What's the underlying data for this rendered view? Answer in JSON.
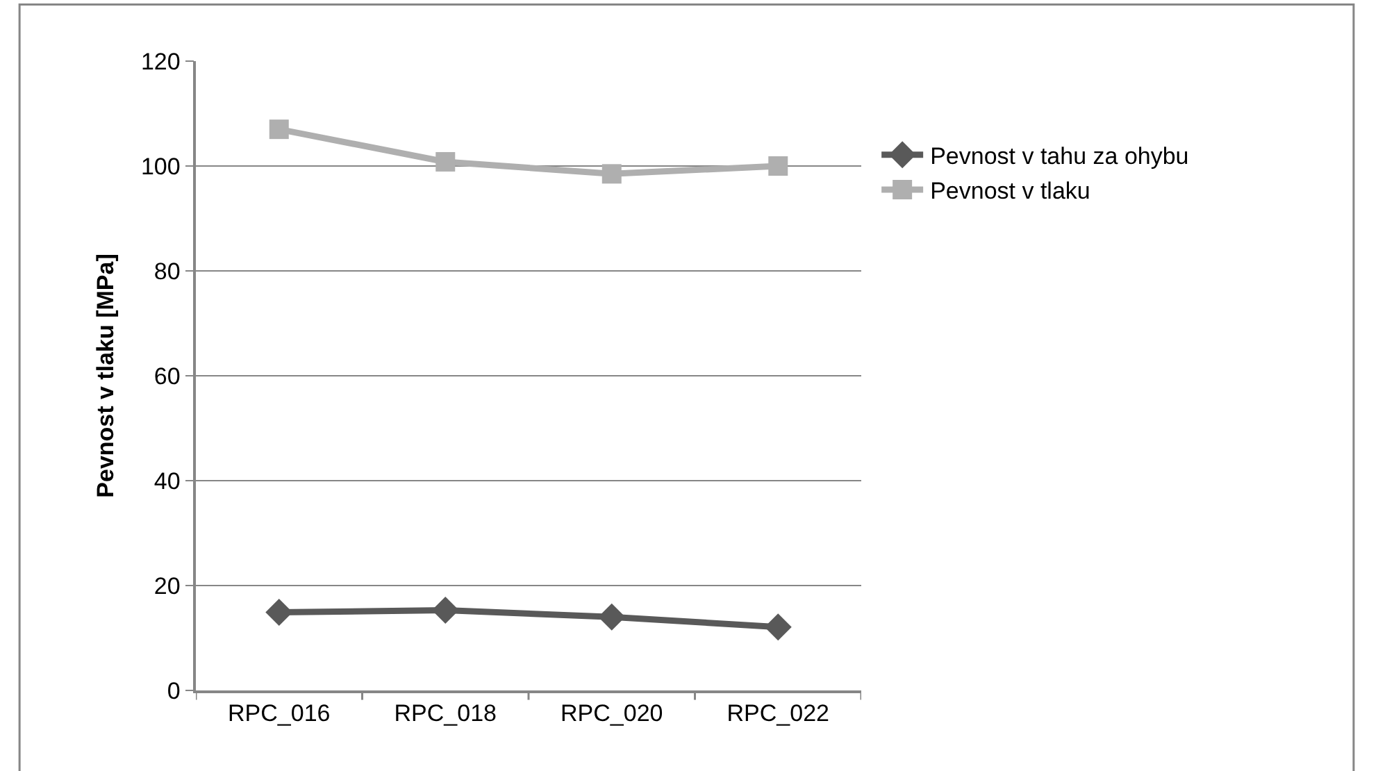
{
  "chart_data": {
    "type": "line",
    "ylabel": "Pevnost v tlaku [MPa]",
    "categories": [
      "RPC_016",
      "RPC_018",
      "RPC_020",
      "RPC_022"
    ],
    "series": [
      {
        "name": "Pevnost v tahu za ohybu",
        "color": "#595959",
        "values": [
          14.9,
          15.3,
          14.0,
          12.1
        ],
        "marker": "diamond"
      },
      {
        "name": "Pevnost v tlaku",
        "color": "#afafaf",
        "values": [
          107,
          100.8,
          98.5,
          100
        ],
        "marker": "square"
      }
    ],
    "ylim": [
      0,
      120
    ],
    "yticks": [
      0,
      20,
      40,
      60,
      80,
      100,
      120
    ],
    "grid": "y",
    "legend": "right",
    "line_style": "solid"
  }
}
